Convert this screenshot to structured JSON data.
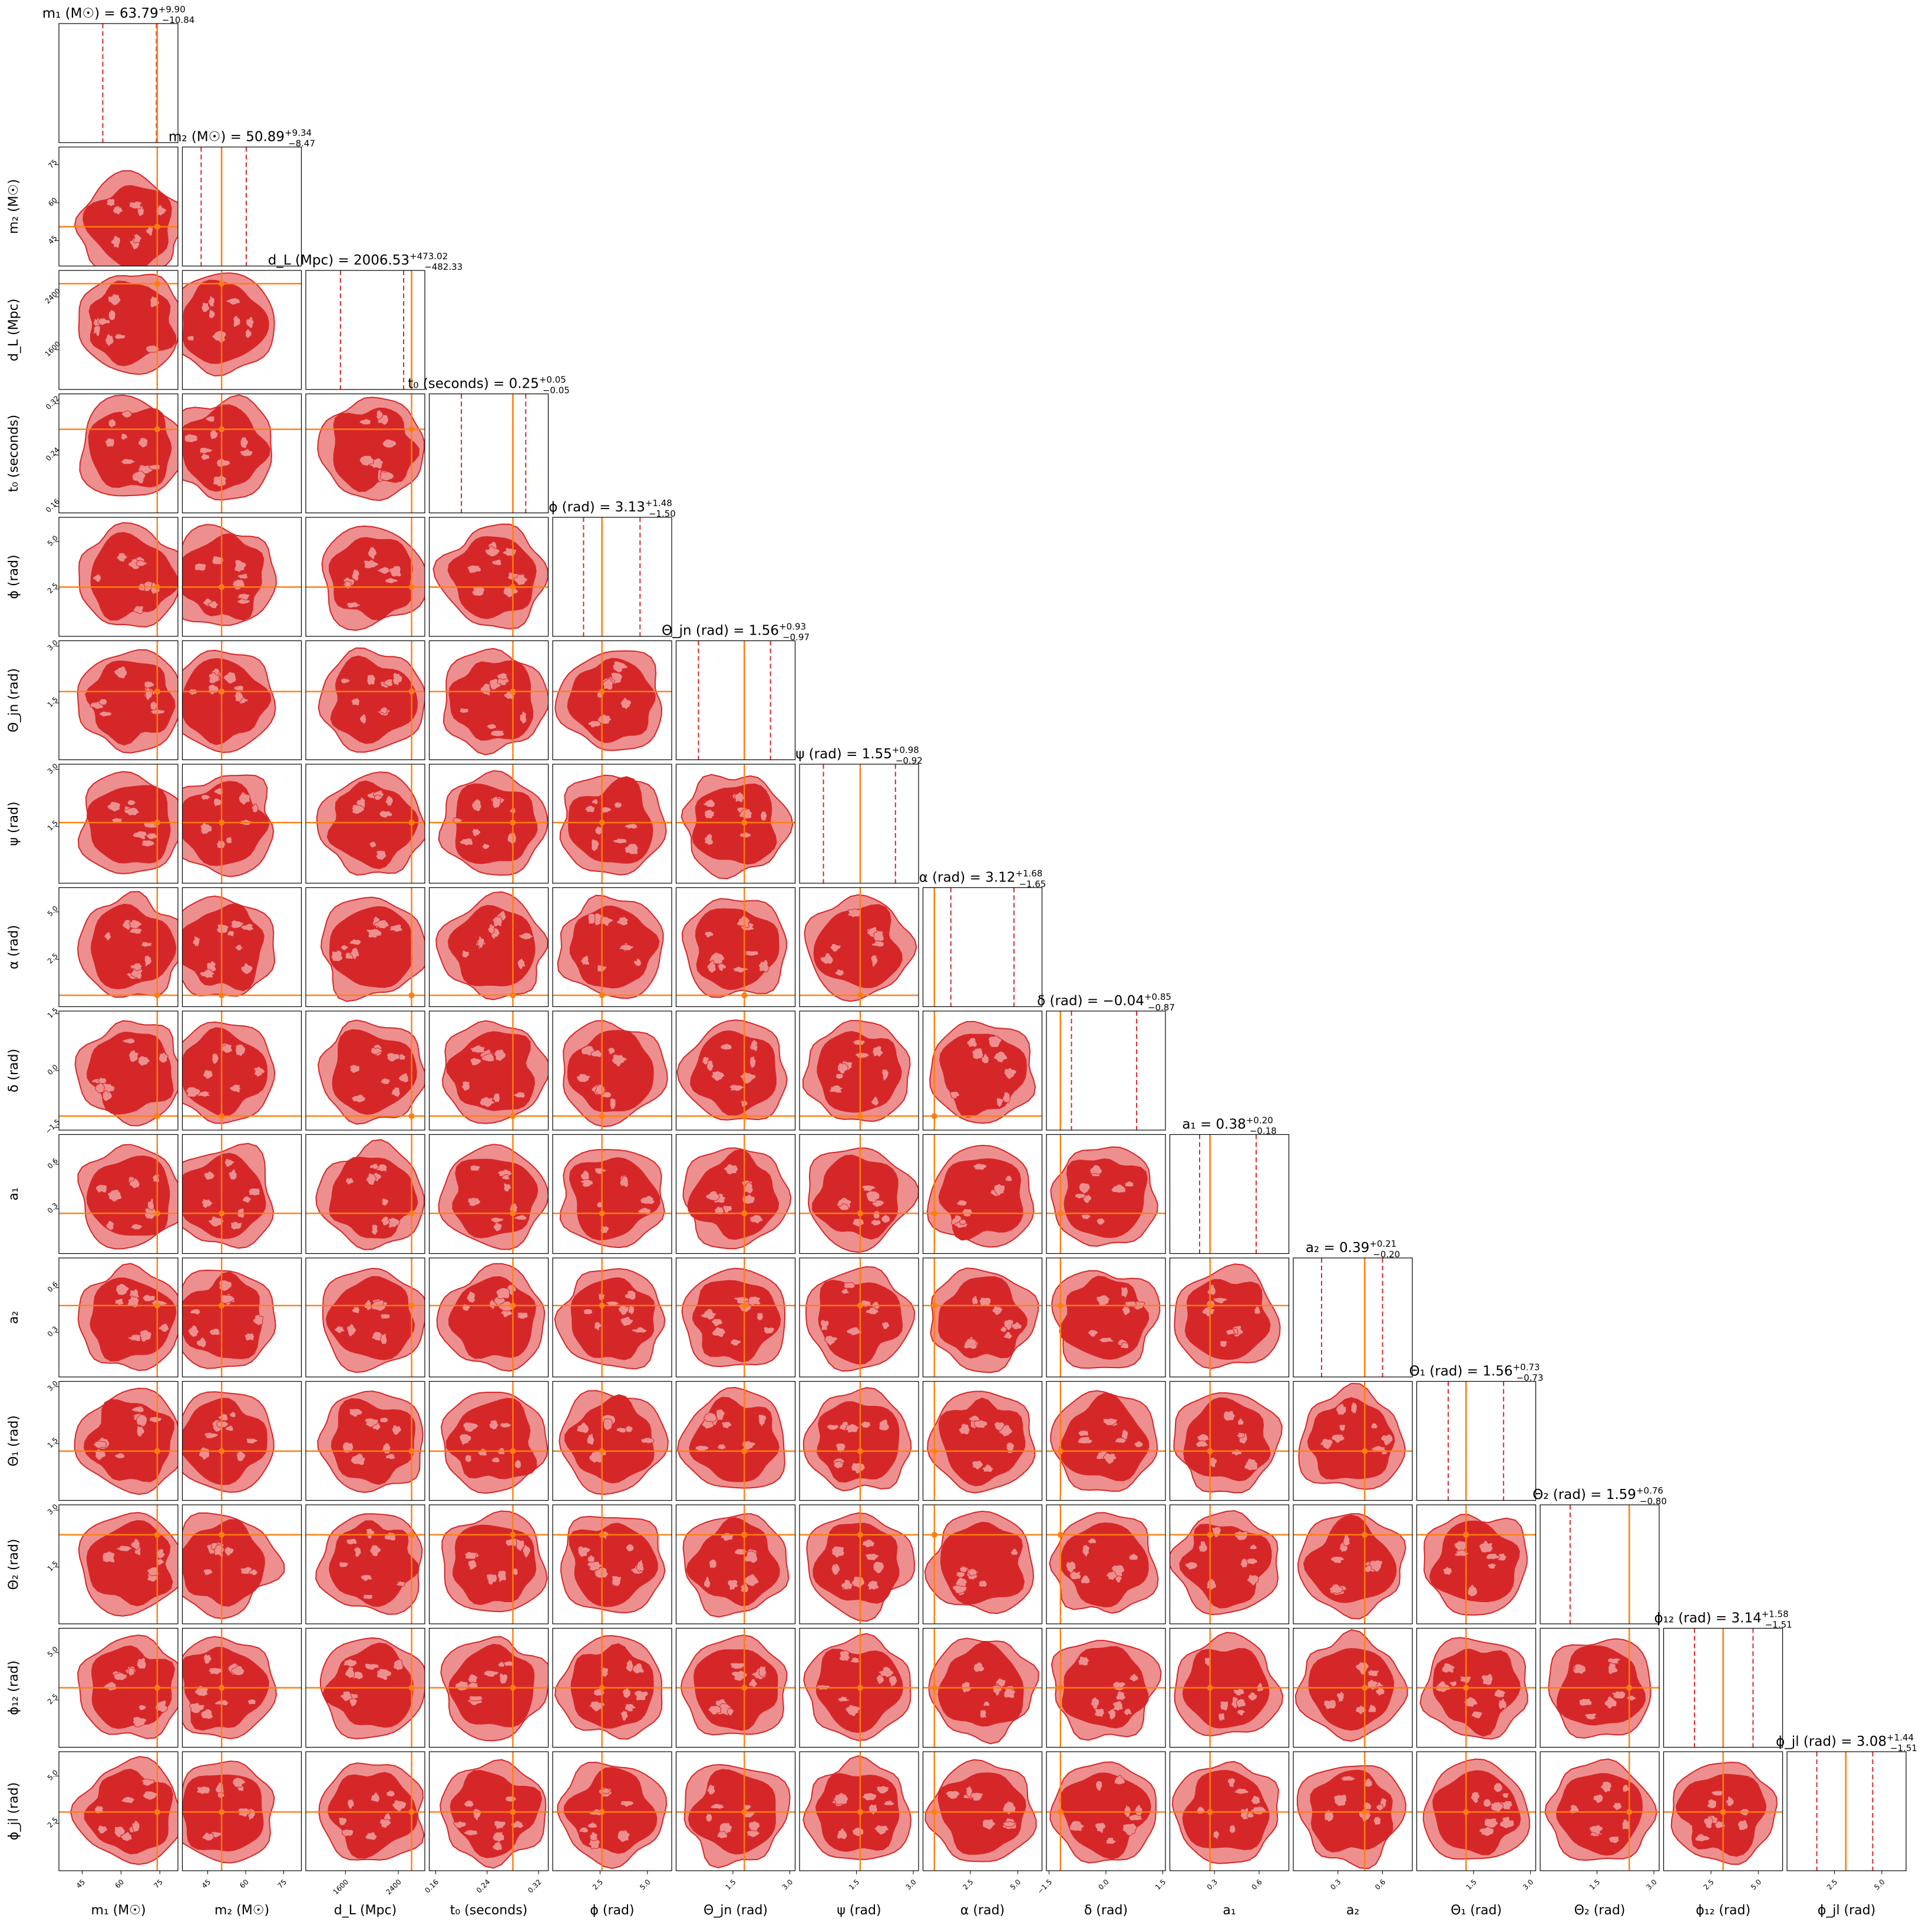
{
  "chart_data": {
    "type": "corner",
    "colors": {
      "contour_fill_outer": "#ee8f8f",
      "contour_fill_inner": "#d62728",
      "contour_line": "#d62728",
      "histogram": "#d62728",
      "truth": "#ff7f0e",
      "frame": "#000000"
    },
    "grid": false,
    "parameters": [
      {
        "label": "m₁ (M☉)",
        "title": "m₁ (M☉) = 63.79",
        "median": 63.79,
        "plus": "+9.90",
        "minus": "−10.84",
        "range": [
          36,
          82
        ],
        "truth": 74,
        "ticks": [
          45,
          60,
          75
        ],
        "tick_labels": [
          "45",
          "60",
          "75"
        ]
      },
      {
        "label": "m₂ (M☉)",
        "title": "m₂ (M☉) = 50.89",
        "median": 50.89,
        "plus": "+9.34",
        "minus": "−8.47",
        "range": [
          35,
          82
        ],
        "truth": 50.5,
        "ticks": [
          45,
          60,
          75
        ],
        "tick_labels": [
          "45",
          "60",
          "75"
        ]
      },
      {
        "label": "d_L (Mpc)",
        "title": "d_L (Mpc) = 2006.53",
        "median": 2006.53,
        "plus": "+473.02",
        "minus": "−482.33",
        "range": [
          1000,
          2800
        ],
        "truth": 2600,
        "ticks": [
          1600,
          2400
        ],
        "tick_labels": [
          "1600",
          "2400"
        ]
      },
      {
        "label": "t₀ (seconds)",
        "title": "t₀ (seconds) = 0.25",
        "median": 0.25,
        "plus": "+0.05",
        "minus": "−0.05",
        "range": [
          0.15,
          0.335
        ],
        "truth": 0.28,
        "ticks": [
          0.16,
          0.24,
          0.32
        ],
        "tick_labels": [
          "0.16",
          "0.24",
          "0.32"
        ]
      },
      {
        "label": "ϕ (rad)",
        "title": "ϕ (rad) = 3.13",
        "median": 3.13,
        "plus": "+1.48",
        "minus": "−1.50",
        "range": [
          0,
          6.28
        ],
        "truth": 2.6,
        "ticks": [
          2.5,
          5.0
        ],
        "tick_labels": [
          "2.5",
          "5.0"
        ]
      },
      {
        "label": "Θ_jn (rad)",
        "title": "Θ_jn (rad) = 1.56",
        "median": 1.56,
        "plus": "+0.93",
        "minus": "−0.97",
        "range": [
          0,
          3.14
        ],
        "truth": 1.8,
        "ticks": [
          1.5,
          3.0
        ],
        "tick_labels": [
          "1.5",
          "3.0"
        ]
      },
      {
        "label": "ψ (rad)",
        "title": "ψ (rad) = 1.55",
        "median": 1.55,
        "plus": "+0.98",
        "minus": "−0.92",
        "range": [
          0,
          3.14
        ],
        "truth": 1.6,
        "ticks": [
          1.5,
          3.0
        ],
        "tick_labels": [
          "1.5",
          "3.0"
        ]
      },
      {
        "label": "α (rad)",
        "title": "α (rad) = 3.12",
        "median": 3.12,
        "plus": "+1.68",
        "minus": "−1.65",
        "range": [
          0,
          6.28
        ],
        "truth": 0.6,
        "ticks": [
          2.5,
          5.0
        ],
        "tick_labels": [
          "2.5",
          "5.0"
        ]
      },
      {
        "label": "δ (rad)",
        "title": "δ (rad) = −0.04",
        "median": -0.04,
        "plus": "+0.85",
        "minus": "−0.87",
        "range": [
          -1.57,
          1.57
        ],
        "truth": -1.2,
        "ticks": [
          -1.5,
          0.0,
          1.5
        ],
        "tick_labels": [
          "−1.5",
          "0.0",
          "1.5"
        ]
      },
      {
        "label": "a₁",
        "title": "a₁ = 0.38",
        "median": 0.38,
        "plus": "+0.20",
        "minus": "−0.18",
        "range": [
          0,
          0.8
        ],
        "truth": 0.27,
        "ticks": [
          0.3,
          0.6
        ],
        "tick_labels": [
          "0.3",
          "0.6"
        ]
      },
      {
        "label": "a₂",
        "title": "a₂ = 0.39",
        "median": 0.39,
        "plus": "+0.21",
        "minus": "−0.20",
        "range": [
          0,
          0.8
        ],
        "truth": 0.48,
        "ticks": [
          0.3,
          0.6
        ],
        "tick_labels": [
          "0.3",
          "0.6"
        ]
      },
      {
        "label": "Θ₁ (rad)",
        "title": "Θ₁ (rad) = 1.56",
        "median": 1.56,
        "plus": "+0.73",
        "minus": "−0.73",
        "range": [
          0,
          3.14
        ],
        "truth": 1.3,
        "ticks": [
          1.5,
          3.0
        ],
        "tick_labels": [
          "1.5",
          "3.0"
        ]
      },
      {
        "label": "Θ₂ (rad)",
        "title": "Θ₂ (rad) = 1.59",
        "median": 1.59,
        "plus": "+0.76",
        "minus": "−0.80",
        "range": [
          0,
          3.14
        ],
        "truth": 2.35,
        "ticks": [
          1.5,
          3.0
        ],
        "tick_labels": [
          "1.5",
          "3.0"
        ]
      },
      {
        "label": "ϕ₁₂ (rad)",
        "title": "ϕ₁₂ (rad) = 3.14",
        "median": 3.14,
        "plus": "+1.58",
        "minus": "−1.51",
        "range": [
          0,
          6.28
        ],
        "truth": 3.14,
        "ticks": [
          2.5,
          5.0
        ],
        "tick_labels": [
          "2.5",
          "5.0"
        ]
      },
      {
        "label": "ϕ_jl (rad)",
        "title": "ϕ_jl (rad) = 3.08",
        "median": 3.08,
        "plus": "+1.44",
        "minus": "−1.51",
        "range": [
          0,
          6.28
        ],
        "truth": 3.1,
        "ticks": [
          2.5,
          5.0
        ],
        "tick_labels": [
          "2.5",
          "5.0"
        ]
      }
    ]
  }
}
